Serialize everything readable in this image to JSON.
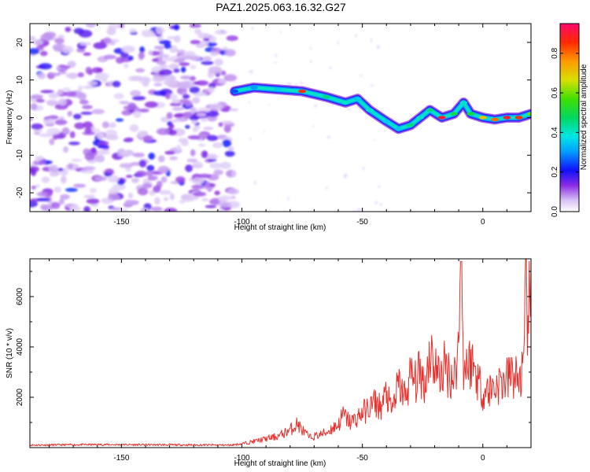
{
  "title": "PAZ1.2025.063.16.32.G27",
  "chart_data": [
    {
      "type": "heatmap",
      "xlabel": "Height of straight line (km)",
      "ylabel": "Frequency (Hz)",
      "xlim": [
        -188,
        20
      ],
      "ylim": [
        -25,
        25
      ],
      "xticks": [
        -150,
        -100,
        -50,
        0
      ],
      "yticks": [
        -20,
        -10,
        0,
        10,
        20
      ],
      "colorbar": {
        "label": "Normalized spectral amplitude",
        "range": [
          0,
          0.95
        ],
        "ticks": [
          "0.0",
          "0.2",
          "0.4",
          "0.6",
          "0.8"
        ],
        "tick_values": [
          0,
          0.2,
          0.4,
          0.6,
          0.8
        ]
      },
      "signal_track": {
        "height_km": [
          -103,
          -95,
          -85,
          -75,
          -65,
          -57,
          -52,
          -47,
          -40,
          -35,
          -30,
          -26,
          -22,
          -17,
          -12,
          -8,
          -5,
          0,
          5,
          10,
          15,
          20
        ],
        "frequency_hz": [
          7,
          8,
          7.5,
          7,
          5.5,
          4,
          5,
          2,
          -1,
          -3,
          -2,
          0,
          2,
          0,
          1,
          4,
          1,
          0,
          -0.5,
          0,
          0,
          1
        ],
        "amplitude": [
          0.25,
          0.3,
          0.35,
          0.85,
          0.45,
          0.4,
          0.35,
          0.4,
          0.35,
          0.35,
          0.45,
          0.4,
          0.45,
          0.9,
          0.5,
          0.4,
          0.5,
          0.7,
          0.8,
          0.9,
          0.85,
          0.6
        ]
      }
    },
    {
      "type": "line",
      "xlabel": "Height of straight line (km)",
      "ylabel": "SNR (10 * v/v)",
      "xlim": [
        -188,
        20
      ],
      "ylim": [
        0,
        7500
      ],
      "xticks": [
        -150,
        -100,
        -50,
        0
      ],
      "yticks": [
        2000,
        4000,
        6000
      ],
      "series": [
        {
          "color": "#e8302c",
          "x": [
            -188,
            -160,
            -130,
            -105,
            -100,
            -95,
            -90,
            -85,
            -80,
            -77,
            -75,
            -72,
            -68,
            -65,
            -62,
            -60,
            -58,
            -55,
            -52,
            -50,
            -48,
            -45,
            -42,
            -40,
            -38,
            -35,
            -32,
            -30,
            -28,
            -26,
            -24,
            -22,
            -20,
            -18,
            -16,
            -14,
            -12,
            -10,
            -9,
            -8,
            -7,
            -6,
            -5,
            -3,
            0,
            3,
            6,
            9,
            12,
            15,
            17,
            18,
            18.5,
            19,
            20
          ],
          "y": [
            100,
            120,
            110,
            100,
            150,
            250,
            350,
            450,
            700,
            950,
            700,
            400,
            500,
            600,
            800,
            900,
            1300,
            1000,
            1200,
            1400,
            1500,
            1800,
            1600,
            2200,
            1400,
            2500,
            2000,
            2900,
            2600,
            3000,
            2500,
            3900,
            3300,
            2800,
            3200,
            3000,
            2700,
            4100,
            7400,
            2700,
            3600,
            3200,
            3500,
            3000,
            2200,
            2300,
            2500,
            2600,
            2900,
            2700,
            3100,
            6500,
            5300,
            5800,
            5200
          ]
        }
      ]
    }
  ]
}
